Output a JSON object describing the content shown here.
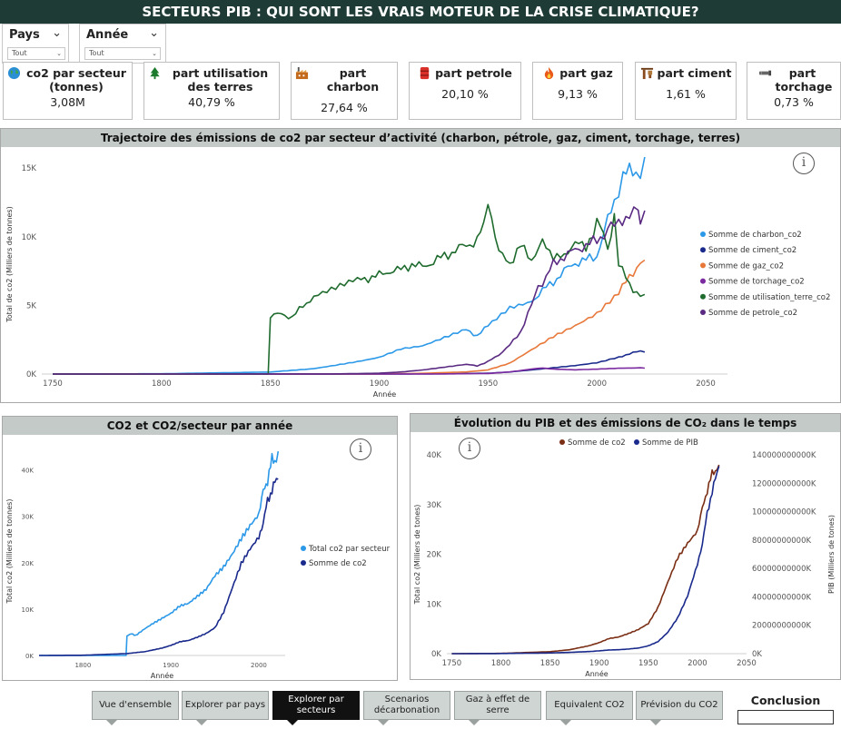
{
  "header": {
    "title": "SECTEURS PIB : QUI SONT LES VRAIS MOTEUR DE LA CRISE CLIMATIQUE?"
  },
  "slicers": [
    {
      "label": "Pays",
      "value": "Tout"
    },
    {
      "label": "Année",
      "value": "Tout"
    }
  ],
  "kpis": [
    {
      "label": "co2 par secteur (tonnes)",
      "value": "3,08M",
      "icon": "globe-icon",
      "color": "#2a9a5a"
    },
    {
      "label": "part utilisation des terres",
      "value": "40,79 %",
      "icon": "tree-icon",
      "color": "#1c7a2c"
    },
    {
      "label": "part charbon",
      "value": "27,64 %",
      "icon": "factory-icon",
      "color": "#c46a1c"
    },
    {
      "label": "part petrole",
      "value": "20,10 %",
      "icon": "oil-barrel-icon",
      "color": "#d9302a"
    },
    {
      "label": "part gaz",
      "value": "9,13 %",
      "icon": "flame-icon",
      "color": "#e8591a"
    },
    {
      "label": "part ciment",
      "value": "1,61 %",
      "icon": "cement-mixer-icon",
      "color": "#8a4b1c"
    },
    {
      "label": "part torchage",
      "value": "0,73 %",
      "icon": "flare-pipe-icon",
      "color": "#555555"
    }
  ],
  "charts": {
    "trajectory": {
      "title": "Trajectoire des émissions de co2 par secteur d’activité (charbon, pétrole, gaz, ciment, torchage, terres)",
      "ylabel": "Total de co2 (Milliers de tonnes)",
      "xlabel": "Année",
      "yticks": [
        "0K",
        "5K",
        "10K",
        "15K"
      ],
      "xticks": [
        "1750",
        "1800",
        "1850",
        "1900",
        "1950",
        "2000",
        "2050"
      ]
    },
    "co2_sector": {
      "title": "CO2 et CO2/secteur par année",
      "ylabel": "Total co2 (Milliers de tonnes)",
      "xlabel": "Année",
      "yticks": [
        "0K",
        "10K",
        "20K",
        "30K",
        "40K"
      ],
      "xticks": [
        "1800",
        "1900",
        "2000"
      ]
    },
    "pib": {
      "title": "Évolution du PIB et des émissions de CO₂ dans le temps",
      "ylabel": "Total co2 (Milliers de tones)",
      "y2label": "PIB (Milliers de tones)",
      "xlabel": "Année",
      "yticks": [
        "0K",
        "10K",
        "20K",
        "30K",
        "40K"
      ],
      "y2ticks": [
        "0K",
        "20000000000K",
        "40000000000K",
        "60000000000K",
        "80000000000K",
        "100000000000K",
        "120000000000K",
        "140000000000K"
      ],
      "xticks": [
        "1750",
        "1800",
        "1850",
        "1900",
        "1950",
        "2000",
        "2050"
      ]
    }
  },
  "chart_data": [
    {
      "type": "line",
      "title": "Trajectoire des émissions de co2 par secteur d’activité (charbon, pétrole, gaz, ciment, torchage, terres)",
      "xlabel": "Année",
      "ylabel": "Total de co2 (Milliers de tonnes)",
      "xlim": [
        1745,
        2060
      ],
      "ylim": [
        0,
        16000
      ],
      "legend": "right",
      "series": [
        {
          "name": "Somme de charbon_co2",
          "color": "#2b98e8",
          "x": [
            1750,
            1800,
            1850,
            1870,
            1890,
            1900,
            1910,
            1920,
            1930,
            1940,
            1945,
            1950,
            1960,
            1970,
            1975,
            1980,
            1985,
            1990,
            1995,
            2000,
            2003,
            2005,
            2008,
            2010,
            2012,
            2015,
            2018,
            2020,
            2022
          ],
          "y": [
            0,
            20,
            150,
            400,
            900,
            1200,
            1800,
            2000,
            2600,
            3200,
            2800,
            3500,
            4800,
            5300,
            6100,
            6700,
            7500,
            8100,
            8300,
            8600,
            10000,
            11300,
            12700,
            13500,
            14800,
            14700,
            15000,
            14600,
            15800
          ]
        },
        {
          "name": "Somme de ciment_co2",
          "color": "#1a2a8c",
          "x": [
            1750,
            1900,
            1930,
            1950,
            1960,
            1970,
            1980,
            1990,
            2000,
            2010,
            2015,
            2020,
            2022
          ],
          "y": [
            0,
            0,
            20,
            60,
            150,
            300,
            450,
            600,
            800,
            1200,
            1500,
            1650,
            1600
          ]
        },
        {
          "name": "Somme de gaz_co2",
          "color": "#e8783a",
          "x": [
            1750,
            1900,
            1920,
            1940,
            1950,
            1960,
            1970,
            1980,
            1990,
            2000,
            2010,
            2015,
            2020,
            2022
          ],
          "y": [
            0,
            0,
            50,
            150,
            300,
            800,
            1800,
            2800,
            3600,
            4500,
            6000,
            7000,
            8200,
            8300
          ]
        },
        {
          "name": "Somme de torchage_co2",
          "color": "#7b2aa0",
          "x": [
            1750,
            1900,
            1930,
            1950,
            1960,
            1970,
            1975,
            1980,
            1990,
            2000,
            2010,
            2020,
            2022
          ],
          "y": [
            0,
            0,
            10,
            40,
            150,
            350,
            450,
            350,
            300,
            350,
            420,
            450,
            430
          ]
        },
        {
          "name": "Somme de utilisation_terre_co2",
          "color": "#1f6b2e",
          "x": [
            1750,
            1849,
            1850,
            1855,
            1860,
            1865,
            1870,
            1880,
            1890,
            1895,
            1900,
            1905,
            1910,
            1915,
            1920,
            1925,
            1930,
            1935,
            1940,
            1945,
            1948,
            1950,
            1955,
            1960,
            1965,
            1970,
            1975,
            1980,
            1985,
            1990,
            1995,
            2000,
            2003,
            2005,
            2008,
            2010,
            2015,
            2020,
            2022
          ],
          "y": [
            0,
            0,
            4200,
            4400,
            4100,
            5000,
            5600,
            6200,
            6800,
            7000,
            7200,
            7500,
            7600,
            8000,
            7800,
            8200,
            8600,
            9000,
            9400,
            9700,
            11000,
            12800,
            8800,
            8100,
            9300,
            8400,
            9500,
            8700,
            8400,
            9800,
            9000,
            11200,
            10200,
            9100,
            11500,
            8000,
            6500,
            5700,
            5800
          ]
        },
        {
          "name": "Somme de petrole_co2",
          "color": "#5a2a82",
          "x": [
            1750,
            1880,
            1900,
            1910,
            1920,
            1930,
            1940,
            1945,
            1950,
            1955,
            1960,
            1965,
            1970,
            1973,
            1975,
            1980,
            1985,
            1990,
            1995,
            2000,
            2005,
            2008,
            2010,
            2015,
            2019,
            2020,
            2022
          ],
          "y": [
            0,
            10,
            60,
            150,
            300,
            500,
            700,
            600,
            900,
            1400,
            2100,
            3100,
            5000,
            6500,
            6600,
            8000,
            8600,
            9000,
            9400,
            9700,
            10500,
            11000,
            11200,
            11500,
            12000,
            10900,
            11900
          ]
        }
      ]
    },
    {
      "type": "line",
      "title": "CO2 et CO2/secteur par année",
      "xlabel": "Année",
      "ylabel": "Total co2 (Milliers de tonnes)",
      "xlim": [
        1750,
        2030
      ],
      "ylim": [
        0,
        45000
      ],
      "legend": "right",
      "series": [
        {
          "name": "Total co2 par secteur",
          "color": "#2b98e8",
          "x": [
            1750,
            1849,
            1850,
            1855,
            1860,
            1870,
            1880,
            1890,
            1900,
            1910,
            1920,
            1930,
            1940,
            1950,
            1960,
            1970,
            1980,
            1990,
            2000,
            2005,
            2010,
            2015,
            2020,
            2022
          ],
          "y": [
            0,
            0,
            4300,
            4600,
            4400,
            5800,
            7000,
            8000,
            9000,
            10500,
            11000,
            12500,
            14000,
            17000,
            19000,
            22000,
            25500,
            28500,
            31000,
            35000,
            38000,
            42000,
            42500,
            44000
          ]
        },
        {
          "name": "Somme de co2",
          "color": "#1a2a8c",
          "x": [
            1750,
            1800,
            1850,
            1870,
            1890,
            1900,
            1910,
            1920,
            1930,
            1940,
            1950,
            1960,
            1970,
            1980,
            1990,
            2000,
            2005,
            2010,
            2015,
            2020,
            2022
          ],
          "y": [
            0,
            50,
            400,
            800,
            1600,
            2200,
            3000,
            3300,
            4000,
            4800,
            6000,
            9300,
            14500,
            19500,
            22500,
            25000,
            29000,
            33000,
            36000,
            37500,
            38000
          ]
        }
      ]
    },
    {
      "type": "line",
      "title": "Évolution du PIB et des émissions de CO₂ dans le temps",
      "xlabel": "Année",
      "ylabel": "Total co2 (Milliers de tones)",
      "y2label": "PIB (Milliers de tones)",
      "xlim": [
        1745,
        2050
      ],
      "ylim": [
        0,
        40000
      ],
      "y2lim": [
        0,
        140000000000
      ],
      "legend": "top",
      "series": [
        {
          "name": "Somme de co2",
          "color": "#7a2e14",
          "axis": "left",
          "x": [
            1750,
            1800,
            1850,
            1870,
            1890,
            1900,
            1910,
            1920,
            1930,
            1940,
            1950,
            1960,
            1970,
            1980,
            1990,
            2000,
            2005,
            2010,
            2015,
            2020,
            2022
          ],
          "y": [
            0,
            50,
            400,
            800,
            1600,
            2200,
            3000,
            3300,
            4000,
            4800,
            6000,
            9300,
            14500,
            19500,
            22500,
            25000,
            29000,
            33000,
            36000,
            37500,
            38000
          ]
        },
        {
          "name": "Somme de PIB",
          "color": "#1a2a8c",
          "axis": "right",
          "x": [
            1750,
            1800,
            1850,
            1870,
            1890,
            1900,
            1910,
            1920,
            1930,
            1940,
            1950,
            1960,
            1970,
            1980,
            1990,
            2000,
            2005,
            2010,
            2015,
            2020,
            2022
          ],
          "y": [
            0,
            100000000,
            500000000,
            900000000,
            1500000000,
            2000000000,
            2600000000,
            2800000000,
            3300000000,
            4000000000,
            5500000000,
            8500000000,
            15000000000,
            25000000000,
            40000000000,
            62000000000,
            78000000000,
            98000000000,
            115000000000,
            126000000000,
            132000000000
          ]
        }
      ]
    }
  ],
  "nav": [
    {
      "label": "Vue d'ensemble",
      "active": false
    },
    {
      "label": "Explorer par pays",
      "active": false
    },
    {
      "label": "Explorer par secteurs",
      "active": true
    },
    {
      "label": "Scenarios décarbonation",
      "active": false
    },
    {
      "label": "Gaz à effet de serre",
      "active": false
    },
    {
      "label": "Equivalent CO2",
      "active": false
    },
    {
      "label": "Prévision du CO2",
      "active": false
    }
  ],
  "conclusion": {
    "label": "Conclusion"
  }
}
